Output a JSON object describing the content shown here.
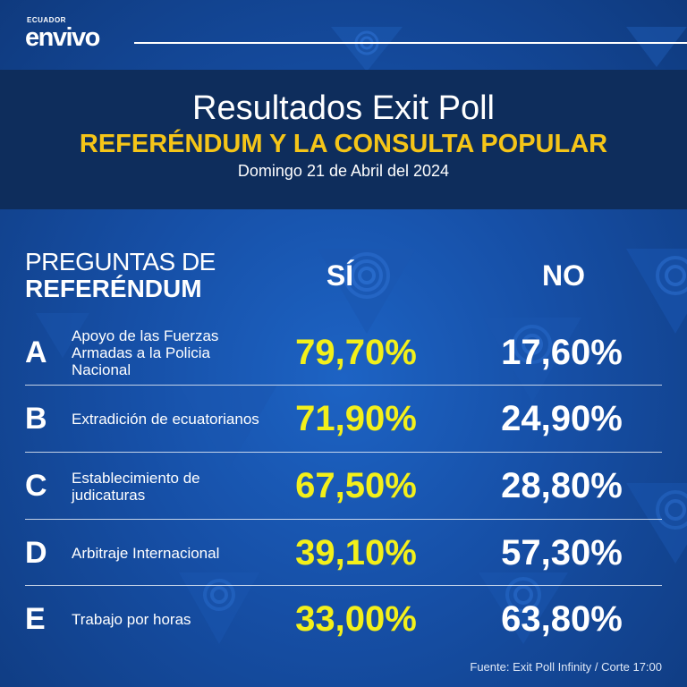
{
  "brand": {
    "small": "ECUADOR",
    "main": "envivo"
  },
  "title": {
    "main": "Resultados Exit Poll",
    "sub": "REFERÉNDUM Y LA CONSULTA POPULAR",
    "date": "Domingo 21 de Abril del 2024"
  },
  "headers": {
    "question_line1": "PREGUNTAS DE",
    "question_line2": "REFERÉNDUM",
    "si": "SÍ",
    "no": "NO"
  },
  "rows": [
    {
      "letter": "A",
      "question": "Apoyo de las Fuerzas Armadas a la Policia Nacional",
      "si": "79,70%",
      "no": "17,60%"
    },
    {
      "letter": "B",
      "question": "Extradición de ecuatorianos",
      "si": "71,90%",
      "no": "24,90%"
    },
    {
      "letter": "C",
      "question": "Establecimiento de judicaturas",
      "si": "67,50%",
      "no": "28,80%"
    },
    {
      "letter": "D",
      "question": "Arbitraje Internacional",
      "si": "39,10%",
      "no": "57,30%"
    },
    {
      "letter": "E",
      "question": "Trabajo por horas",
      "si": "33,00%",
      "no": "63,80%"
    }
  ],
  "source": "Fuente: Exit Poll Infinity / Corte 17:00",
  "colors": {
    "accent_yellow": "#f5c518",
    "si_yellow": "#f3f01a",
    "band": "#0e2d5c",
    "background": "#164fa6"
  },
  "icons": {
    "decor": "triangle-signal-icon"
  }
}
